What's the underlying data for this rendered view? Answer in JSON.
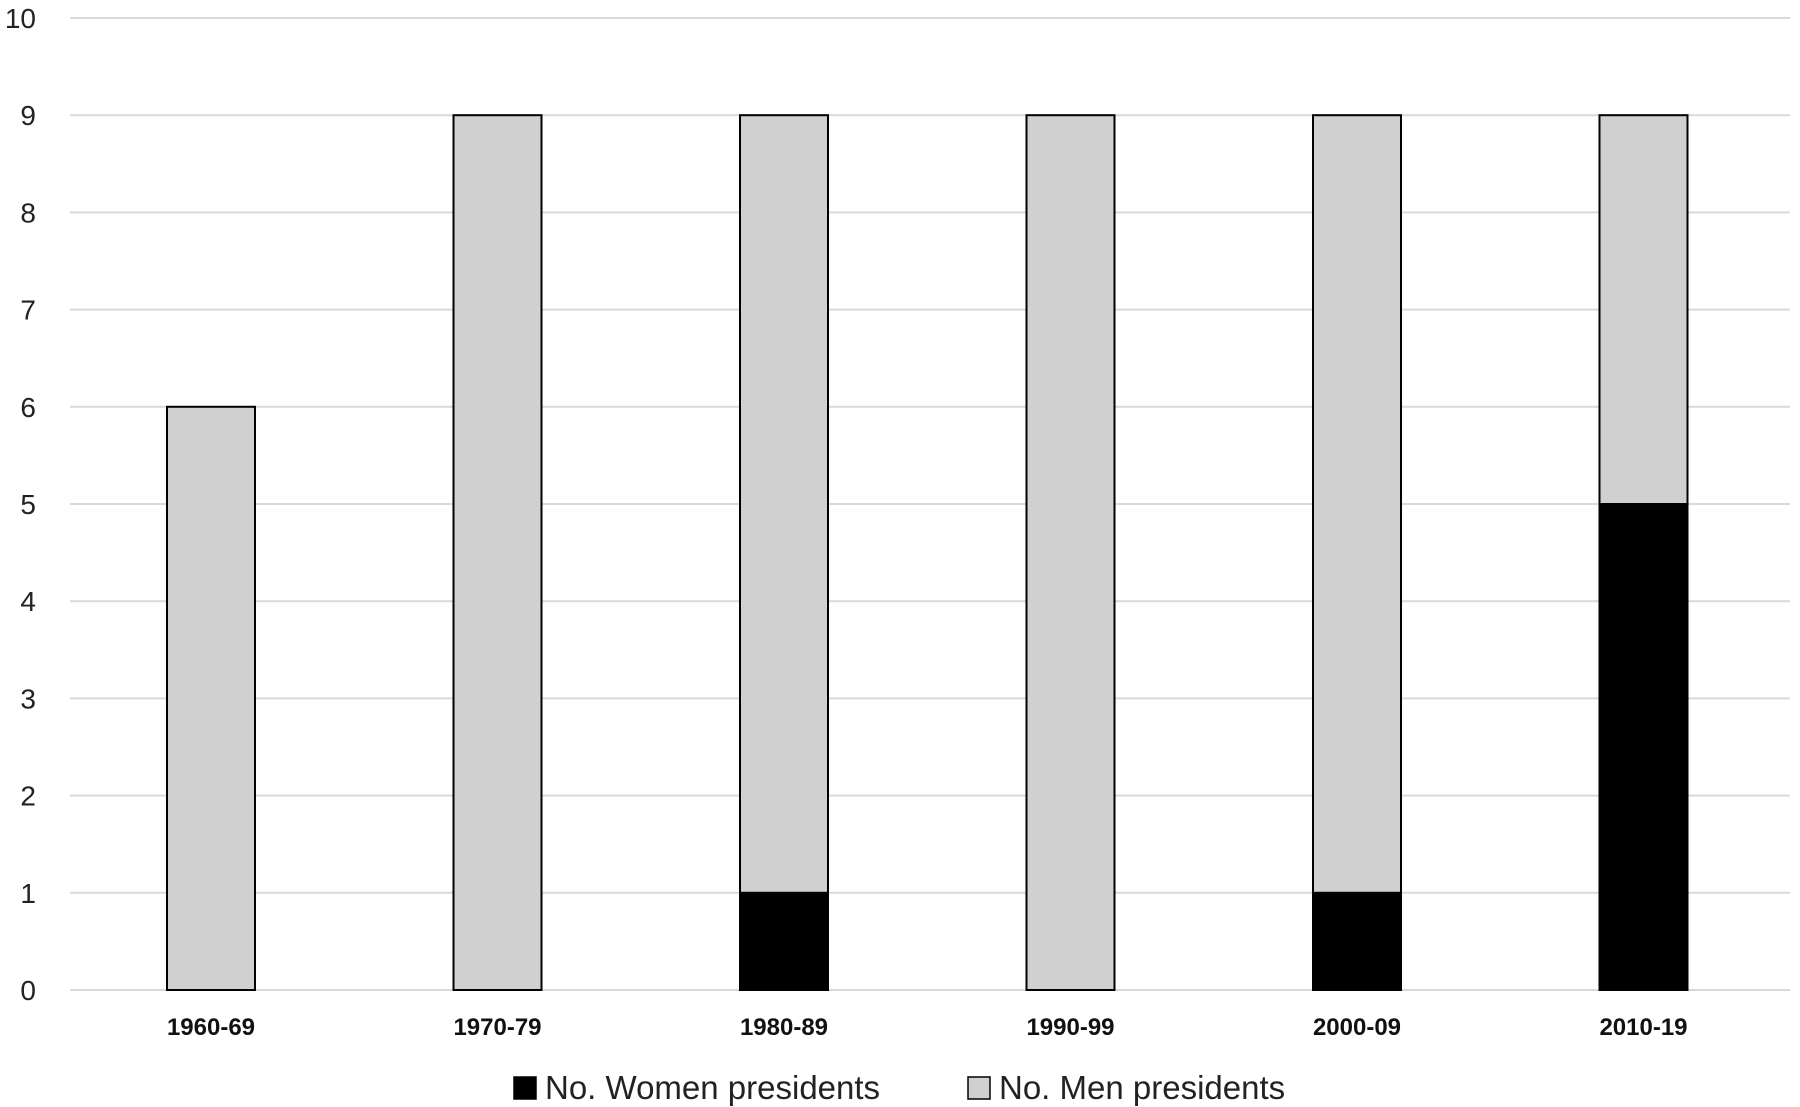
{
  "chart_data": {
    "type": "bar",
    "stacked": true,
    "categories": [
      "1960-69",
      "1970-79",
      "1980-89",
      "1990-99",
      "2000-09",
      "2010-19"
    ],
    "series": [
      {
        "name": "No. Women presidents",
        "values": [
          0,
          0,
          1,
          0,
          1,
          5
        ],
        "color": "#000000"
      },
      {
        "name": "No. Men presidents",
        "values": [
          6,
          9,
          8,
          9,
          8,
          4
        ],
        "color": "#d0d0d0"
      }
    ],
    "ylim": [
      0,
      10
    ],
    "yticks": [
      "0",
      "1",
      "2",
      "3",
      "4",
      "5",
      "6",
      "7",
      "8",
      "9",
      "10"
    ],
    "grid": true,
    "gridline_color": "#d9d9d9",
    "bar_outline_color": "#000000",
    "legend_placement": "bottom"
  }
}
